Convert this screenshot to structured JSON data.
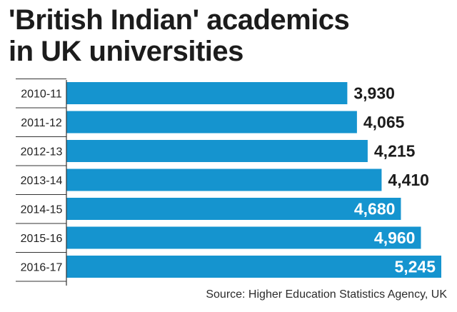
{
  "header": {
    "title_line1": "'British Indian' academics",
    "title_line2": "in UK universities"
  },
  "source": "Source: Higher Education Statistics Agency, UK",
  "colors": {
    "bar": "#1594cf",
    "axis": "#333333",
    "label_outside": "#1c1c1c",
    "label_inside": "#ffffff"
  },
  "chart_data": {
    "type": "bar",
    "orientation": "horizontal",
    "title": "'British Indian' academics in UK universities",
    "categories": [
      "2010-11",
      "2011-12",
      "2012-13",
      "2013-14",
      "2014-15",
      "2015-16",
      "2016-17"
    ],
    "values": [
      3930,
      4065,
      4215,
      4410,
      4680,
      4960,
      5245
    ],
    "value_labels": [
      "3,930",
      "4,065",
      "4,215",
      "4,410",
      "4,680",
      "4,960",
      "5,245"
    ],
    "xlabel": "",
    "ylabel": "",
    "grid": false,
    "legend": "none"
  }
}
